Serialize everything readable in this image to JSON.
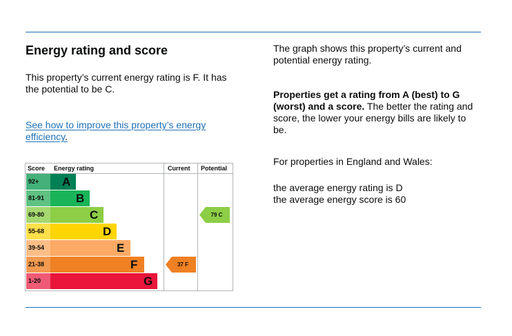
{
  "left": {
    "heading": "Energy rating and score",
    "intro": "This property’s current energy rating is F. It has the potential to be C.",
    "link_text": "See how to improve this property’s energy efficiency",
    "link_suffix": "."
  },
  "right": {
    "p1": "The graph shows this property’s current and potential energy rating.",
    "p2_bold": "Properties get a rating from A (best) to G (worst) and a score.",
    "p2_rest": " The better the rating and score, the lower your energy bills are likely to be.",
    "p3": "For properties in England and Wales:",
    "p4_line1": "the average energy rating is D",
    "p4_line2": "the average energy score is 60"
  },
  "chart": {
    "headers": {
      "score": "Score",
      "rating": "Energy rating",
      "current": "Current",
      "potential": "Potential"
    },
    "bands": [
      {
        "range": "92+",
        "letter": "A",
        "color": "#008054",
        "score_bg": "#43b179"
      },
      {
        "range": "81-91",
        "letter": "B",
        "color": "#19b459",
        "score_bg": "#5ec282"
      },
      {
        "range": "69-80",
        "letter": "C",
        "color": "#8dce46",
        "score_bg": "#a5d870"
      },
      {
        "range": "55-68",
        "letter": "D",
        "color": "#ffd500",
        "score_bg": "#ffe04a"
      },
      {
        "range": "39-54",
        "letter": "E",
        "color": "#fcaa65",
        "score_bg": "#fdbd86"
      },
      {
        "range": "21-38",
        "letter": "F",
        "color": "#ef8023",
        "score_bg": "#f29a4f"
      },
      {
        "range": "1-20",
        "letter": "G",
        "color": "#e9153b",
        "score_bg": "#ef5b76"
      }
    ],
    "current": {
      "label": "37 F",
      "band": "F",
      "color": "#ef8023"
    },
    "potential": {
      "label": "79 C",
      "band": "C",
      "color": "#8dce46"
    }
  }
}
